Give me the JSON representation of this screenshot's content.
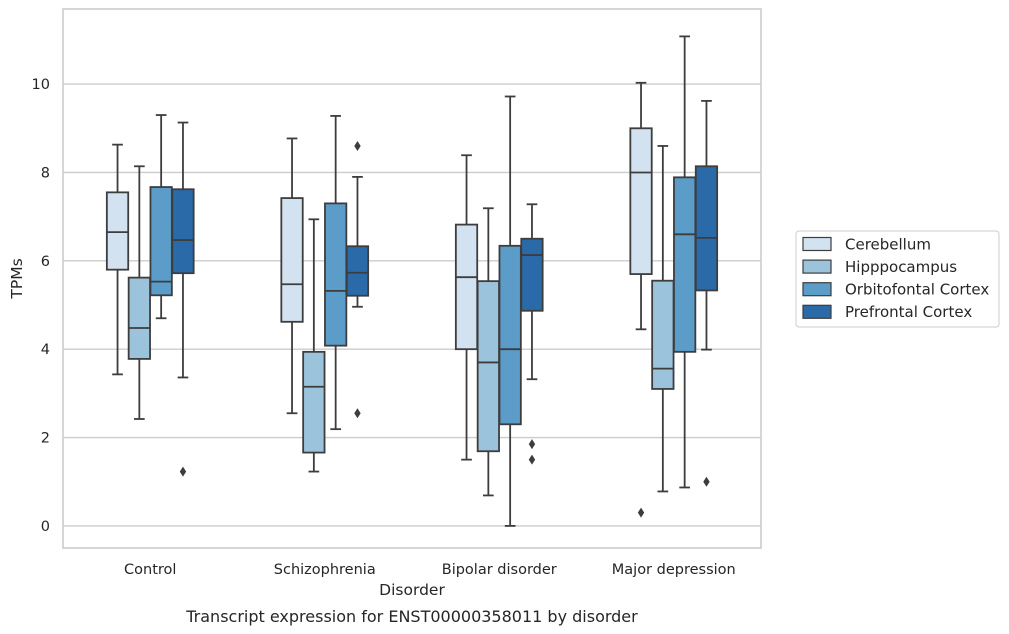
{
  "chart_data": {
    "type": "boxplot",
    "title": "",
    "caption": "Transcript expression for ENST00000358011 by disorder",
    "xlabel": "Disorder",
    "ylabel": "TPMs",
    "ylim": [
      -0.5,
      11.7
    ],
    "yticks": [
      "0",
      "2",
      "4",
      "6",
      "8",
      "10"
    ],
    "grid": true,
    "legend_position": "right",
    "categories": [
      "Control",
      "Schizophrenia",
      "Bipolar disorder",
      "Major depression"
    ],
    "series": [
      {
        "name": "Cerebellum",
        "color": "#d3e2f0",
        "boxes": [
          {
            "whislo": 3.43,
            "q1": 5.8,
            "med": 6.65,
            "q3": 7.55,
            "whishi": 8.63,
            "fliers": []
          },
          {
            "whislo": 2.55,
            "q1": 4.62,
            "med": 5.47,
            "q3": 7.42,
            "whishi": 8.77,
            "fliers": []
          },
          {
            "whislo": 1.5,
            "q1": 4.0,
            "med": 5.63,
            "q3": 6.82,
            "whishi": 8.39,
            "fliers": []
          },
          {
            "whislo": 4.45,
            "q1": 5.7,
            "med": 8.0,
            "q3": 9.0,
            "whishi": 10.03,
            "fliers": [
              0.3
            ]
          }
        ]
      },
      {
        "name": "Hipppocampus",
        "color": "#9cc3dc",
        "boxes": [
          {
            "whislo": 2.42,
            "q1": 3.78,
            "med": 4.48,
            "q3": 5.62,
            "whishi": 8.14,
            "fliers": []
          },
          {
            "whislo": 1.23,
            "q1": 1.66,
            "med": 3.15,
            "q3": 3.94,
            "whishi": 6.94,
            "fliers": []
          },
          {
            "whislo": 0.69,
            "q1": 1.69,
            "med": 3.7,
            "q3": 5.54,
            "whishi": 7.19,
            "fliers": []
          },
          {
            "whislo": 0.78,
            "q1": 3.1,
            "med": 3.56,
            "q3": 5.55,
            "whishi": 8.6,
            "fliers": []
          }
        ]
      },
      {
        "name": "Orbitofontal Cortex",
        "color": "#5b9cc8",
        "boxes": [
          {
            "whislo": 4.7,
            "q1": 5.22,
            "med": 5.53,
            "q3": 7.67,
            "whishi": 9.3,
            "fliers": []
          },
          {
            "whislo": 2.19,
            "q1": 4.08,
            "med": 5.32,
            "q3": 7.3,
            "whishi": 9.28,
            "fliers": []
          },
          {
            "whislo": 0.0,
            "q1": 2.3,
            "med": 4.0,
            "q3": 6.34,
            "whishi": 9.72,
            "fliers": []
          },
          {
            "whislo": 0.87,
            "q1": 3.94,
            "med": 6.6,
            "q3": 7.89,
            "whishi": 11.08,
            "fliers": []
          }
        ]
      },
      {
        "name": "Prefrontal Cortex",
        "color": "#2b6aa8",
        "boxes": [
          {
            "whislo": 3.36,
            "q1": 5.72,
            "med": 6.47,
            "q3": 7.62,
            "whishi": 9.13,
            "fliers": [
              1.23
            ]
          },
          {
            "whislo": 4.96,
            "q1": 5.21,
            "med": 5.73,
            "q3": 6.33,
            "whishi": 7.9,
            "fliers": [
              8.6,
              2.55
            ]
          },
          {
            "whislo": 3.32,
            "q1": 4.87,
            "med": 6.13,
            "q3": 6.5,
            "whishi": 7.28,
            "fliers": [
              1.85,
              1.5
            ]
          },
          {
            "whislo": 3.99,
            "q1": 5.33,
            "med": 6.52,
            "q3": 8.14,
            "whishi": 9.62,
            "fliers": [
              1.0
            ]
          }
        ]
      }
    ]
  }
}
